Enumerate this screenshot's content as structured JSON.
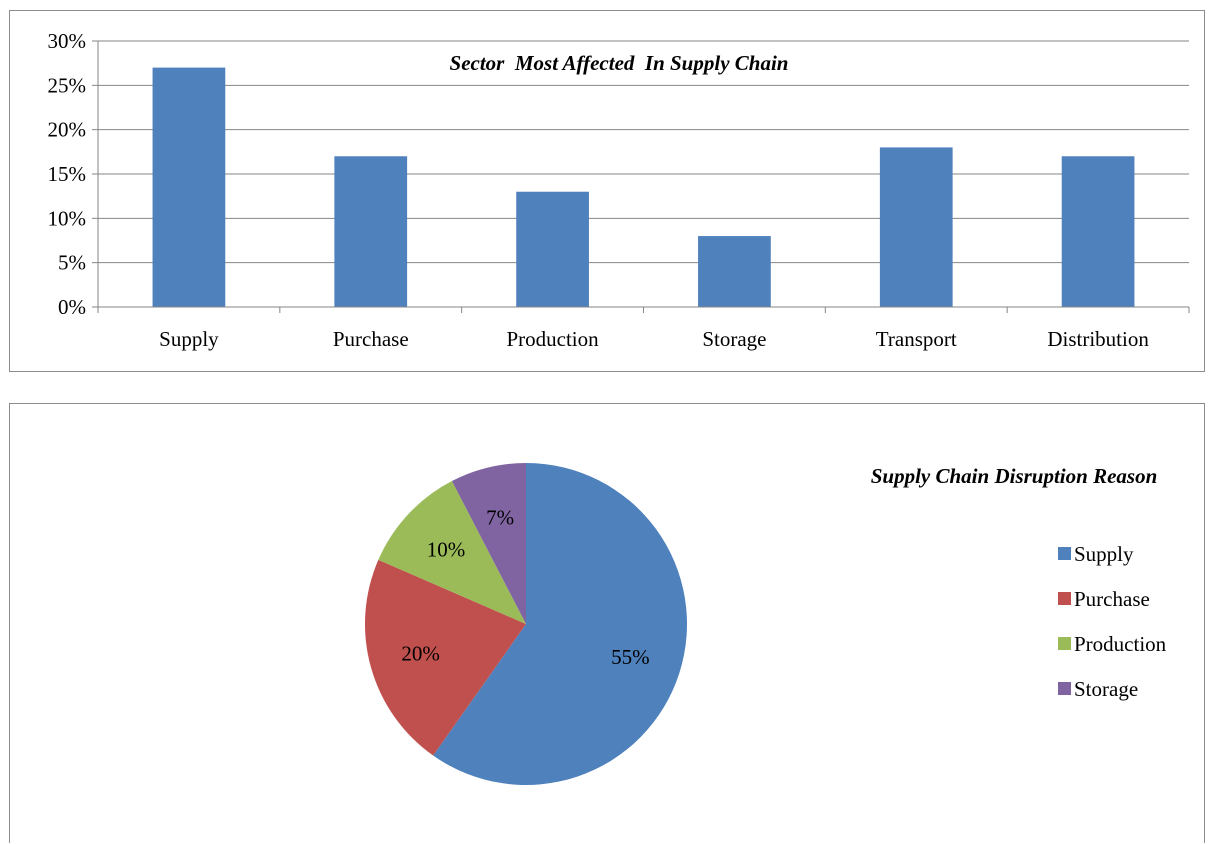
{
  "chart_data": [
    {
      "type": "bar",
      "title": "Sector  Most Affected  In Supply Chain",
      "categories": [
        "Supply",
        "Purchase",
        "Production",
        "Storage",
        "Transport",
        "Distribution"
      ],
      "values": [
        27,
        17,
        13,
        8,
        18,
        17
      ],
      "ylim": [
        0,
        30
      ],
      "yticks": [
        "0%",
        "5%",
        "10%",
        "15%",
        "20%",
        "25%",
        "30%"
      ],
      "color": "#4F81BD",
      "grid": true,
      "legend": "none"
    },
    {
      "type": "pie",
      "title": "Supply Chain Disruption Reason",
      "slices": [
        {
          "label": "Supply",
          "value": 55,
          "display": "55%",
          "color": "#4F81BD"
        },
        {
          "label": "Purchase",
          "value": 20,
          "display": "20%",
          "color": "#C0504D"
        },
        {
          "label": "Production",
          "value": 10,
          "display": "10%",
          "color": "#9BBB59"
        },
        {
          "label": "Storage",
          "value": 7,
          "display": "7%",
          "color": "#8064A2"
        }
      ],
      "legend": "right"
    }
  ]
}
